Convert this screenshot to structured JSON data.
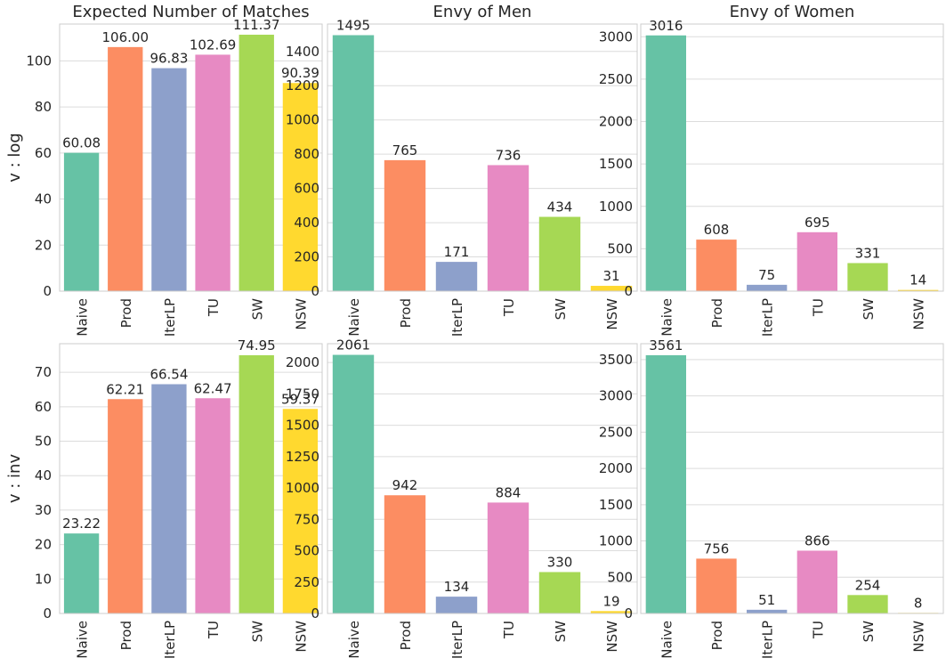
{
  "categories": [
    "Naive",
    "Prod",
    "IterLP",
    "TU",
    "SW",
    "NSW"
  ],
  "palette": [
    "#66c2a5",
    "#fc8d62",
    "#8da0cb",
    "#e78ac3",
    "#a6d854",
    "#ffd92f"
  ],
  "row_labels": [
    "v : log",
    "v : inv"
  ],
  "chart_data": [
    {
      "type": "bar",
      "title": "Expected Number of Matches",
      "ylabel": "v : log",
      "categories": [
        "Naive",
        "Prod",
        "IterLP",
        "TU",
        "SW",
        "NSW"
      ],
      "values": [
        60.08,
        106.0,
        96.83,
        102.69,
        111.37,
        90.39
      ],
      "value_labels": [
        "60.08",
        "106.00",
        "96.83",
        "102.69",
        "111.37",
        "90.39"
      ],
      "ylim": [
        0,
        116
      ],
      "yticks": [
        0,
        20,
        40,
        60,
        80,
        100
      ],
      "grid": true
    },
    {
      "type": "bar",
      "title": "Envy of Men",
      "ylabel": "",
      "categories": [
        "Naive",
        "Prod",
        "IterLP",
        "TU",
        "SW",
        "NSW"
      ],
      "values": [
        1495,
        765,
        171,
        736,
        434,
        31
      ],
      "value_labels": [
        "1495",
        "765",
        "171",
        "736",
        "434",
        "31"
      ],
      "ylim": [
        0,
        1560
      ],
      "yticks": [
        0,
        200,
        400,
        600,
        800,
        1000,
        1200,
        1400
      ],
      "grid": true
    },
    {
      "type": "bar",
      "title": "Envy of Women",
      "ylabel": "",
      "categories": [
        "Naive",
        "Prod",
        "IterLP",
        "TU",
        "SW",
        "NSW"
      ],
      "values": [
        3016,
        608,
        75,
        695,
        331,
        14
      ],
      "value_labels": [
        "3016",
        "608",
        "75",
        "695",
        "331",
        "14"
      ],
      "ylim": [
        0,
        3150
      ],
      "yticks": [
        0,
        500,
        1000,
        1500,
        2000,
        2500,
        3000
      ],
      "grid": true
    },
    {
      "type": "bar",
      "title": "",
      "ylabel": "v : inv",
      "categories": [
        "Naive",
        "Prod",
        "IterLP",
        "TU",
        "SW",
        "NSW"
      ],
      "values": [
        23.22,
        62.21,
        66.54,
        62.47,
        74.95,
        59.37
      ],
      "value_labels": [
        "23.22",
        "62.21",
        "66.54",
        "62.47",
        "74.95",
        "59.37"
      ],
      "ylim": [
        0,
        78.3
      ],
      "yticks": [
        0,
        10,
        20,
        30,
        40,
        50,
        60,
        70
      ],
      "grid": true
    },
    {
      "type": "bar",
      "title": "",
      "ylabel": "",
      "categories": [
        "Naive",
        "Prod",
        "IterLP",
        "TU",
        "SW",
        "NSW"
      ],
      "values": [
        2061,
        942,
        134,
        884,
        330,
        19
      ],
      "value_labels": [
        "2061",
        "942",
        "134",
        "884",
        "330",
        "19"
      ],
      "ylim": [
        0,
        2150
      ],
      "yticks": [
        0,
        250,
        500,
        750,
        1000,
        1250,
        1500,
        1750,
        2000
      ],
      "grid": true
    },
    {
      "type": "bar",
      "title": "",
      "ylabel": "",
      "categories": [
        "Naive",
        "Prod",
        "IterLP",
        "TU",
        "SW",
        "NSW"
      ],
      "values": [
        3561,
        756,
        51,
        866,
        254,
        8
      ],
      "value_labels": [
        "3561",
        "756",
        "51",
        "866",
        "254",
        "8"
      ],
      "ylim": [
        0,
        3720
      ],
      "yticks": [
        0,
        500,
        1000,
        1500,
        2000,
        2500,
        3000,
        3500
      ],
      "grid": true
    }
  ]
}
